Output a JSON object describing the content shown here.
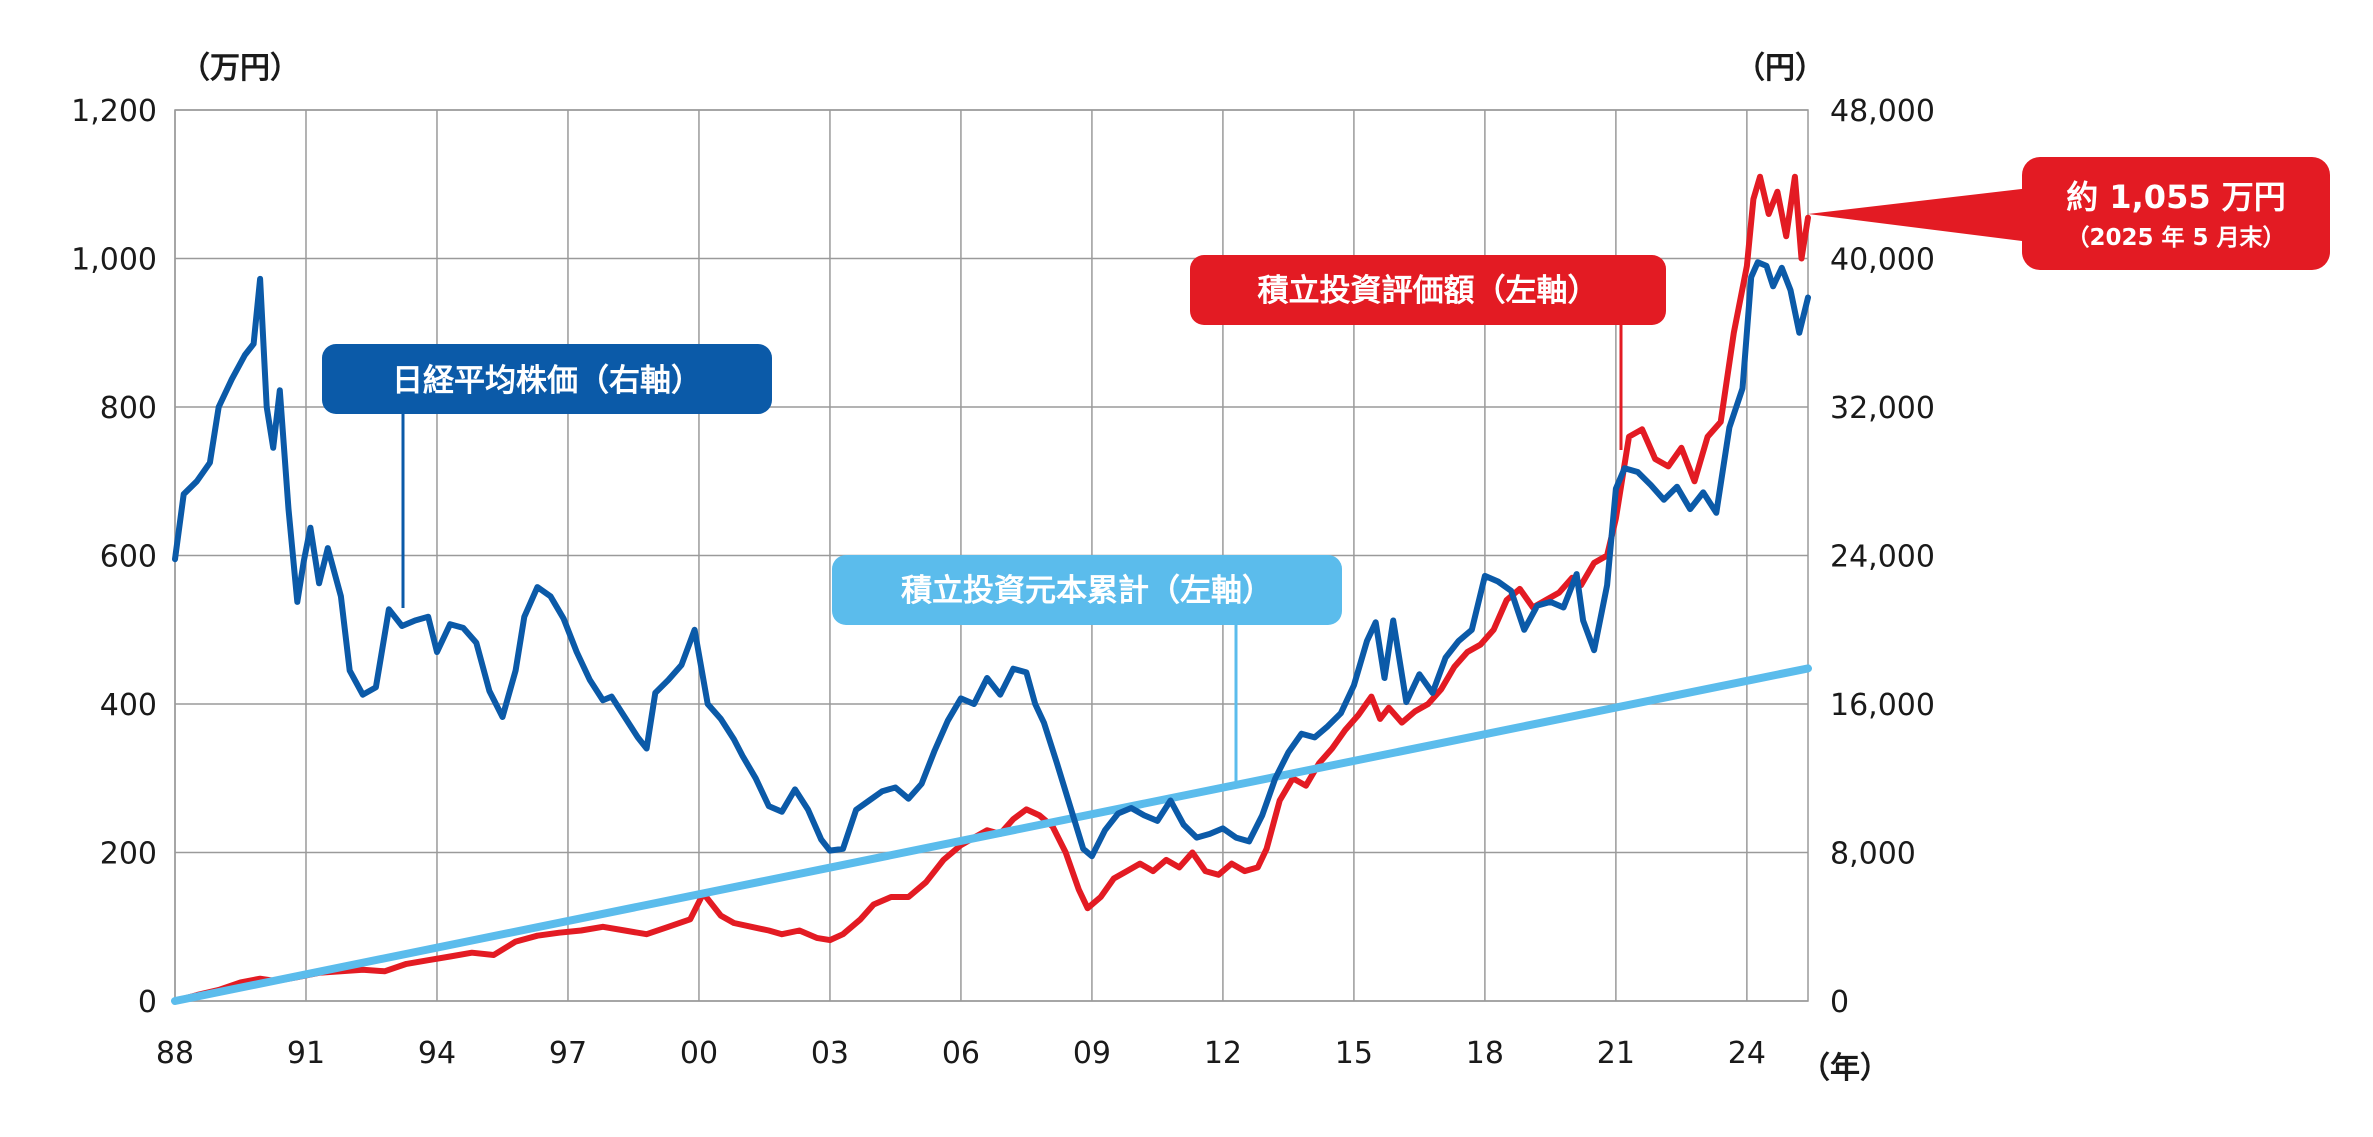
{
  "chart_data": {
    "type": "line",
    "units": {
      "left": "（万円）",
      "right": "（円）",
      "x": "（年）"
    },
    "x_tick_labels": [
      "88",
      "91",
      "94",
      "97",
      "00",
      "03",
      "06",
      "09",
      "12",
      "15",
      "18",
      "21",
      "24"
    ],
    "x_ticks": [
      1988,
      1991,
      1994,
      1997,
      2000,
      2003,
      2006,
      2009,
      2012,
      2015,
      2018,
      2021,
      2024
    ],
    "xlim": [
      1988,
      2025.4
    ],
    "y_left": {
      "ylim": [
        0,
        1200
      ],
      "ticks": [
        0,
        200,
        400,
        600,
        800,
        1000,
        1200
      ],
      "tick_labels": [
        "0",
        "200",
        "400",
        "600",
        "800",
        "1,000",
        "1,200"
      ]
    },
    "y_right": {
      "ylim": [
        0,
        48000
      ],
      "ticks": [
        0,
        8000,
        16000,
        24000,
        32000,
        40000,
        48000
      ],
      "tick_labels": [
        "0",
        "8,000",
        "16,000",
        "24,000",
        "32,000",
        "40,000",
        "48,000"
      ]
    },
    "colors": {
      "nikkei": "#0b5aa8",
      "valuation": "#e31b23",
      "principal": "#5bbcec",
      "grid": "#9a9a9a",
      "label_nikkei_bg": "#0b5aa8",
      "label_principal_bg": "#5bbcec",
      "label_valuation_bg": "#e31b23"
    },
    "series": [
      {
        "name": "日経平均株価（右軸）",
        "key": "nikkei",
        "axis": "right",
        "x": [
          1988.0,
          1988.2,
          1988.5,
          1988.8,
          1989.0,
          1989.3,
          1989.6,
          1989.8,
          1989.95,
          1990.1,
          1990.25,
          1990.4,
          1990.6,
          1990.8,
          1990.95,
          1991.1,
          1991.3,
          1991.5,
          1991.8,
          1992.0,
          1992.3,
          1992.6,
          1992.9,
          1993.2,
          1993.5,
          1993.8,
          1994.0,
          1994.3,
          1994.6,
          1994.9,
          1995.2,
          1995.5,
          1995.8,
          1996.0,
          1996.3,
          1996.6,
          1996.9,
          1997.2,
          1997.5,
          1997.8,
          1998.0,
          1998.3,
          1998.6,
          1998.8,
          1999.0,
          1999.3,
          1999.6,
          1999.9,
          2000.2,
          2000.5,
          2000.8,
          2001.0,
          2001.3,
          2001.6,
          2001.9,
          2002.2,
          2002.5,
          2002.8,
          2003.0,
          2003.3,
          2003.6,
          2003.9,
          2004.2,
          2004.5,
          2004.8,
          2005.1,
          2005.4,
          2005.7,
          2006.0,
          2006.3,
          2006.6,
          2006.9,
          2007.2,
          2007.5,
          2007.7,
          2007.9,
          2008.2,
          2008.5,
          2008.8,
          2009.0,
          2009.3,
          2009.6,
          2009.9,
          2010.2,
          2010.5,
          2010.8,
          2011.1,
          2011.4,
          2011.7,
          2012.0,
          2012.3,
          2012.6,
          2012.9,
          2013.2,
          2013.5,
          2013.8,
          2014.1,
          2014.4,
          2014.7,
          2015.0,
          2015.3,
          2015.5,
          2015.7,
          2015.9,
          2016.2,
          2016.5,
          2016.8,
          2017.1,
          2017.4,
          2017.7,
          2018.0,
          2018.3,
          2018.6,
          2018.9,
          2019.2,
          2019.5,
          2019.8,
          2020.1,
          2020.25,
          2020.5,
          2020.8,
          2021.0,
          2021.2,
          2021.5,
          2021.8,
          2022.1,
          2022.4,
          2022.7,
          2023.0,
          2023.3,
          2023.6,
          2023.9,
          2024.1,
          2024.25,
          2024.45,
          2024.6,
          2024.8,
          2025.0,
          2025.2,
          2025.4
        ],
        "values": [
          23800,
          27300,
          28000,
          29000,
          32000,
          33500,
          34800,
          35400,
          38900,
          32000,
          29800,
          32900,
          26500,
          21500,
          23700,
          25500,
          22500,
          24400,
          21800,
          17800,
          16500,
          16900,
          21100,
          20200,
          20500,
          20700,
          18800,
          20300,
          20100,
          19300,
          16700,
          15300,
          17800,
          20700,
          22300,
          21800,
          20600,
          18800,
          17300,
          16200,
          16400,
          15300,
          14200,
          13600,
          16600,
          17300,
          18100,
          20000,
          16000,
          15200,
          14100,
          13200,
          12000,
          10500,
          10200,
          11400,
          10300,
          8700,
          8100,
          8200,
          10300,
          10800,
          11300,
          11500,
          10900,
          11700,
          13500,
          15100,
          16300,
          16000,
          17400,
          16500,
          17900,
          17700,
          16000,
          15000,
          12800,
          10500,
          8200,
          7800,
          9200,
          10100,
          10400,
          10000,
          9700,
          10800,
          9500,
          8800,
          9000,
          9300,
          8800,
          8600,
          10000,
          12000,
          13400,
          14400,
          14200,
          14800,
          15500,
          17000,
          19400,
          20400,
          17400,
          20500,
          16100,
          17600,
          16600,
          18500,
          19400,
          20000,
          22900,
          22600,
          22100,
          20000,
          21300,
          21500,
          21200,
          23000,
          20500,
          18900,
          22400,
          27600,
          28700,
          28500,
          27800,
          27000,
          27700,
          26500,
          27400,
          26300,
          30900,
          33000,
          39000,
          39800,
          39600,
          38500,
          39500,
          38300,
          36000,
          37900
        ]
      },
      {
        "name": "積立投資評価額（左軸）",
        "key": "valuation",
        "axis": "left",
        "x": [
          1988.0,
          1988.5,
          1989.0,
          1989.5,
          1989.95,
          1990.3,
          1990.8,
          1991.3,
          1991.8,
          1992.3,
          1992.8,
          1993.3,
          1993.8,
          1994.3,
          1994.8,
          1995.3,
          1995.8,
          1996.3,
          1996.8,
          1997.3,
          1997.8,
          1998.3,
          1998.8,
          1999.3,
          1999.8,
          2000.1,
          2000.5,
          2000.8,
          2001.2,
          2001.6,
          2001.9,
          2002.3,
          2002.7,
          2003.0,
          2003.3,
          2003.7,
          2004.0,
          2004.4,
          2004.8,
          2005.2,
          2005.6,
          2006.0,
          2006.3,
          2006.6,
          2006.9,
          2007.2,
          2007.5,
          2007.8,
          2008.1,
          2008.4,
          2008.7,
          2008.9,
          2009.2,
          2009.5,
          2009.8,
          2010.1,
          2010.4,
          2010.7,
          2011.0,
          2011.3,
          2011.6,
          2011.9,
          2012.2,
          2012.5,
          2012.8,
          2013.0,
          2013.3,
          2013.6,
          2013.9,
          2014.2,
          2014.5,
          2014.8,
          2015.1,
          2015.4,
          2015.6,
          2015.8,
          2016.1,
          2016.4,
          2016.7,
          2017.0,
          2017.3,
          2017.6,
          2017.9,
          2018.2,
          2018.5,
          2018.8,
          2019.1,
          2019.4,
          2019.7,
          2020.0,
          2020.2,
          2020.5,
          2020.8,
          2021.0,
          2021.3,
          2021.6,
          2021.9,
          2022.2,
          2022.5,
          2022.8,
          2023.1,
          2023.4,
          2023.7,
          2024.0,
          2024.15,
          2024.3,
          2024.5,
          2024.7,
          2024.9,
          2025.1,
          2025.25,
          2025.4
        ],
        "values": [
          0,
          8,
          15,
          25,
          30,
          27,
          32,
          38,
          40,
          42,
          40,
          50,
          55,
          60,
          65,
          62,
          80,
          88,
          92,
          95,
          100,
          95,
          90,
          100,
          110,
          145,
          115,
          105,
          100,
          95,
          90,
          95,
          85,
          82,
          90,
          110,
          130,
          140,
          140,
          160,
          190,
          210,
          220,
          230,
          225,
          245,
          258,
          250,
          235,
          200,
          150,
          125,
          140,
          165,
          175,
          185,
          175,
          190,
          180,
          200,
          175,
          170,
          185,
          175,
          180,
          205,
          270,
          300,
          290,
          320,
          340,
          365,
          385,
          410,
          380,
          395,
          375,
          390,
          400,
          420,
          450,
          470,
          480,
          500,
          540,
          555,
          530,
          540,
          550,
          570,
          560,
          590,
          600,
          650,
          760,
          770,
          730,
          720,
          745,
          700,
          760,
          780,
          900,
          990,
          1080,
          1110,
          1060,
          1090,
          1030,
          1110,
          1000,
          1055
        ]
      },
      {
        "name": "積立投資元本累計（左軸）",
        "key": "principal",
        "axis": "left",
        "x": [
          1988.0,
          2025.4
        ],
        "values": [
          0,
          448
        ]
      }
    ],
    "labels": {
      "nikkei": "日経平均株価（右軸）",
      "principal": "積立投資元本累計（左軸）",
      "valuation": "積立投資評価額（左軸）"
    },
    "callout": {
      "main": "約 1,055 万円",
      "sub": "（2025 年 5 月末）"
    },
    "grid": true
  }
}
